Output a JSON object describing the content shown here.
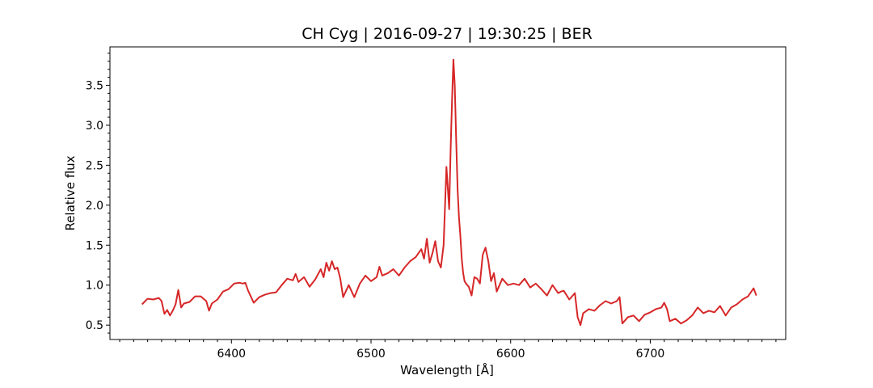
{
  "chart_data": {
    "type": "line",
    "title": "CH Cyg | 2016-09-27 | 19:30:25 | BER",
    "xlabel": "Wavelength [Å]",
    "ylabel": "Relative flux",
    "xlim": [
      6313,
      6797
    ],
    "ylim": [
      0.32,
      3.98
    ],
    "xticks": [
      6400,
      6500,
      6600,
      6700
    ],
    "yticks": [
      0.5,
      1.0,
      1.5,
      2.0,
      2.5,
      3.0,
      3.5
    ],
    "xtick_labels": [
      "6400",
      "6500",
      "6600",
      "6700"
    ],
    "ytick_labels": [
      "0.5",
      "1.0",
      "1.5",
      "2.0",
      "2.5",
      "3.0",
      "3.5"
    ],
    "grid": false,
    "colors": {
      "line": "#d62728"
    },
    "series": [
      {
        "x": [
          6336,
          6340,
          6344,
          6348,
          6350,
          6352,
          6354,
          6356,
          6358,
          6360,
          6362,
          6364,
          6366,
          6370,
          6374,
          6378,
          6382,
          6384,
          6386,
          6390,
          6394,
          6398,
          6402,
          6406,
          6408,
          6410,
          6412,
          6416,
          6420,
          6424,
          6428,
          6432,
          6436,
          6440,
          6444,
          6446,
          6448,
          6452,
          6456,
          6460,
          6464,
          6466,
          6468,
          6470,
          6472,
          6474,
          6476,
          6478,
          6480,
          6484,
          6488,
          6492,
          6496,
          6500,
          6504,
          6506,
          6508,
          6512,
          6516,
          6520,
          6524,
          6528,
          6532,
          6536,
          6538,
          6540,
          6542,
          6544,
          6546,
          6548,
          6550,
          6552,
          6554,
          6556,
          6557,
          6558,
          6559,
          6560,
          6561,
          6562,
          6563,
          6564,
          6565,
          6566,
          6567,
          6568,
          6570,
          6572,
          6574,
          6576,
          6578,
          6580,
          6582,
          6584,
          6586,
          6588,
          6590,
          6594,
          6598,
          6602,
          6606,
          6610,
          6614,
          6618,
          6622,
          6626,
          6630,
          6634,
          6636,
          6638,
          6642,
          6646,
          6648,
          6650,
          6652,
          6656,
          6660,
          6664,
          6668,
          6672,
          6676,
          6678,
          6680,
          6684,
          6688,
          6692,
          6696,
          6700,
          6704,
          6708,
          6710,
          6712,
          6714,
          6718,
          6722,
          6726,
          6730,
          6734,
          6738,
          6742,
          6746,
          6750,
          6754,
          6758,
          6762,
          6766,
          6770,
          6774,
          6776
        ],
        "y": [
          0.76,
          0.83,
          0.82,
          0.84,
          0.8,
          0.64,
          0.69,
          0.62,
          0.68,
          0.76,
          0.94,
          0.72,
          0.77,
          0.79,
          0.86,
          0.86,
          0.8,
          0.68,
          0.77,
          0.82,
          0.92,
          0.95,
          1.02,
          1.03,
          1.02,
          1.03,
          0.93,
          0.78,
          0.85,
          0.88,
          0.9,
          0.91,
          1.0,
          1.08,
          1.06,
          1.14,
          1.04,
          1.1,
          0.98,
          1.07,
          1.2,
          1.1,
          1.28,
          1.18,
          1.3,
          1.2,
          1.22,
          1.08,
          0.85,
          1.0,
          0.85,
          1.02,
          1.12,
          1.05,
          1.1,
          1.23,
          1.12,
          1.15,
          1.2,
          1.12,
          1.22,
          1.3,
          1.35,
          1.45,
          1.33,
          1.58,
          1.28,
          1.4,
          1.55,
          1.3,
          1.22,
          1.5,
          2.48,
          1.95,
          2.7,
          3.3,
          3.82,
          3.5,
          2.8,
          2.2,
          1.85,
          1.62,
          1.32,
          1.15,
          1.05,
          1.02,
          0.98,
          0.87,
          1.1,
          1.08,
          1.02,
          1.38,
          1.47,
          1.3,
          1.05,
          1.15,
          0.92,
          1.08,
          1.0,
          1.02,
          1.0,
          1.08,
          0.97,
          1.02,
          0.95,
          0.87,
          1.0,
          0.9,
          0.92,
          0.93,
          0.82,
          0.9,
          0.6,
          0.5,
          0.65,
          0.7,
          0.68,
          0.75,
          0.8,
          0.77,
          0.8,
          0.85,
          0.52,
          0.6,
          0.62,
          0.55,
          0.63,
          0.66,
          0.7,
          0.72,
          0.78,
          0.7,
          0.55,
          0.58,
          0.52,
          0.56,
          0.62,
          0.72,
          0.65,
          0.68,
          0.66,
          0.74,
          0.62,
          0.72,
          0.76,
          0.82,
          0.86,
          0.96,
          0.87
        ]
      }
    ]
  }
}
